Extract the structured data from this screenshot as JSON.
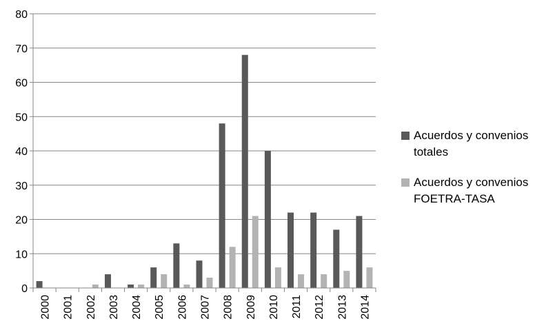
{
  "chart_data": {
    "type": "bar",
    "categories": [
      "2000",
      "2001",
      "2002",
      "2003",
      "2004",
      "2005",
      "2006",
      "2007",
      "2008",
      "2009",
      "2010",
      "2011",
      "2012",
      "2013",
      "2014"
    ],
    "series": [
      {
        "name": "Acuerdos y convenios totales",
        "color": "#595959",
        "values": [
          2,
          0,
          0,
          4,
          1,
          6,
          13,
          8,
          48,
          68,
          40,
          22,
          22,
          17,
          21
        ]
      },
      {
        "name": "Acuerdos y convenios FOETRA-TASA",
        "color": "#b3b3b3",
        "values": [
          0,
          0,
          1,
          0,
          1,
          4,
          1,
          3,
          12,
          21,
          6,
          4,
          4,
          5,
          6
        ]
      }
    ],
    "yticks": [
      "0",
      "10",
      "20",
      "30",
      "40",
      "50",
      "60",
      "70",
      "80"
    ],
    "ylim": [
      0,
      80
    ],
    "grid": true,
    "legend_position": "right"
  },
  "legend": {
    "items": [
      {
        "label": "Acuerdos y convenios totales",
        "color": "#595959"
      },
      {
        "label": "Acuerdos y convenios FOETRA-TASA",
        "color": "#b3b3b3"
      }
    ]
  }
}
